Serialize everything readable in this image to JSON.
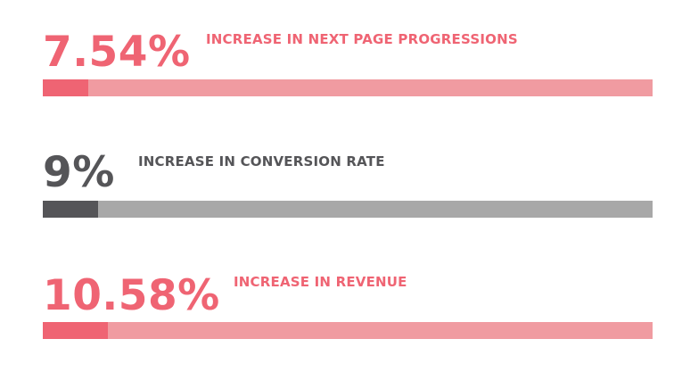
{
  "stats": [
    {
      "value": "7.54%",
      "label": "INCREASE IN NEXT PAGE PROGRESSIONS",
      "progress_fraction": 0.075,
      "text_color": "#ef6473",
      "fill_color": "#ef6473",
      "track_color": "#f09ba1"
    },
    {
      "value": "9%",
      "label": "INCREASE IN CONVERSION RATE",
      "progress_fraction": 0.09,
      "text_color": "#555558",
      "fill_color": "#555558",
      "track_color": "#a8a8a8"
    },
    {
      "value": "10.58%",
      "label": "INCREASE IN REVENUE",
      "progress_fraction": 0.106,
      "text_color": "#ef6473",
      "fill_color": "#ef6473",
      "track_color": "#f09ba1"
    }
  ]
}
